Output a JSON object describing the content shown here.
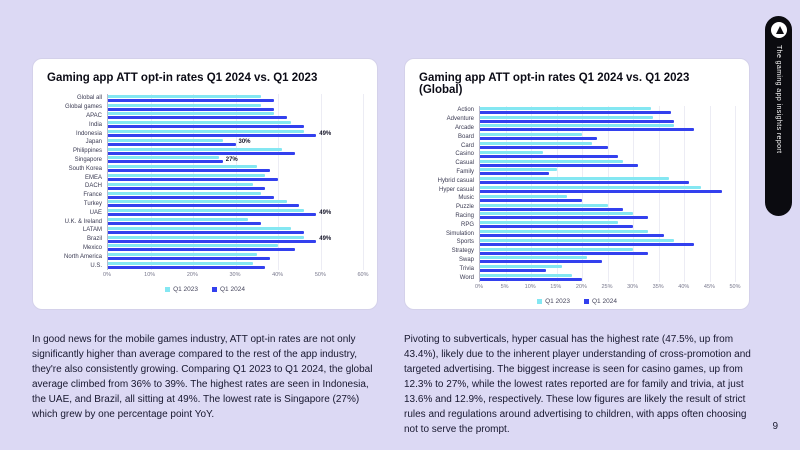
{
  "page": {
    "number": "9",
    "background_color": "#dcd9f4"
  },
  "side_tab": {
    "label": "The gaming app insights report"
  },
  "colors": {
    "q1_2023": "#84e7f2",
    "q1_2024": "#3340ee",
    "card_bg": "#ffffff"
  },
  "cards": [
    {
      "title": "Gaming app ATT opt-in rates Q1 2024 vs. Q1 2023",
      "paragraph": "In good news for the mobile games industry, ATT opt-in rates are not only significantly higher than average compared to the rest of the app industry, they're also consistently growing. Comparing Q1 2023 to Q1 2024, the global average climbed from 36% to 39%. The highest rates are seen in Indonesia, the UAE, and Brazil, all sitting at 49%. The lowest rate is Singapore (27%) which grew by one percentage point YoY."
    },
    {
      "title": "Gaming app ATT opt-in rates Q1 2024 vs. Q1 2023 (Global)",
      "paragraph": "Pivoting to subverticals, hyper casual has the highest rate (47.5%, up from 43.4%), likely due to the inherent player understanding of cross-promotion and targeted advertising. The biggest increase is seen for casino games, up from 12.3% to 27%, while the lowest rates reported are for family and trivia, at just 13.6% and 12.9%, respectively. These low figures are likely the result of strict rules and regulations around advertising to children, with apps often choosing not to serve the prompt."
    }
  ],
  "chart_data": [
    {
      "type": "bar",
      "orientation": "horizontal",
      "title": "Gaming app ATT opt-in rates Q1 2024 vs. Q1 2023",
      "categories": [
        "Global all",
        "Global games",
        "APAC",
        "India",
        "Indonesia",
        "Japan",
        "Philippines",
        "Singapore",
        "South Korea",
        "EMEA",
        "DACH",
        "France",
        "Turkey",
        "UAE",
        "U.K. & Ireland",
        "LATAM",
        "Brazil",
        "Mexico",
        "North America",
        "U.S."
      ],
      "series": [
        {
          "name": "Q1 2023",
          "color": "#84e7f2",
          "values": [
            36,
            36,
            39,
            43,
            46,
            27,
            41,
            26,
            35,
            37,
            34,
            36,
            42,
            46,
            33,
            43,
            46,
            40,
            35,
            34
          ]
        },
        {
          "name": "Q1 2024",
          "color": "#3340ee",
          "values": [
            39,
            39,
            42,
            46,
            49,
            30,
            44,
            27,
            38,
            40,
            37,
            39,
            45,
            49,
            36,
            46,
            49,
            44,
            38,
            37
          ]
        }
      ],
      "xticks": [
        "0%",
        "10%",
        "20%",
        "30%",
        "40%",
        "50%",
        "60%"
      ],
      "xmax": 60,
      "grid": true,
      "legend_position": "bottom",
      "annotations": {
        "Indonesia": "49%",
        "Japan": "30%",
        "Singapore": "27%",
        "UAE": "49%",
        "Brazil": "49%"
      }
    },
    {
      "type": "bar",
      "orientation": "horizontal",
      "title": "Gaming app ATT opt-in rates Q1 2024 vs. Q1 2023 (Global)",
      "categories": [
        "Action",
        "Adventure",
        "Arcade",
        "Board",
        "Card",
        "Casino",
        "Casual",
        "Family",
        "Hybrid casual",
        "Hyper casual",
        "Music",
        "Puzzle",
        "Racing",
        "RPG",
        "Simulation",
        "Sports",
        "Strategy",
        "Swap",
        "Trivia",
        "Word"
      ],
      "series": [
        {
          "name": "Q1 2023",
          "color": "#84e7f2",
          "values": [
            33.5,
            34,
            38,
            20,
            22,
            12.3,
            28,
            15,
            37,
            43.4,
            17,
            25,
            30,
            27,
            33,
            38,
            30,
            21,
            16,
            18
          ]
        },
        {
          "name": "Q1 2024",
          "color": "#3340ee",
          "values": [
            37.5,
            38,
            42,
            23,
            25,
            27,
            31,
            13.6,
            41,
            47.5,
            20,
            28,
            33,
            30,
            36,
            42,
            33,
            24,
            12.9,
            20
          ]
        }
      ],
      "xticks": [
        "0%",
        "5%",
        "10%",
        "15%",
        "20%",
        "25%",
        "30%",
        "35%",
        "40%",
        "45%",
        "50%"
      ],
      "xmax": 50,
      "grid": true,
      "legend_position": "bottom",
      "annotations": {}
    }
  ]
}
